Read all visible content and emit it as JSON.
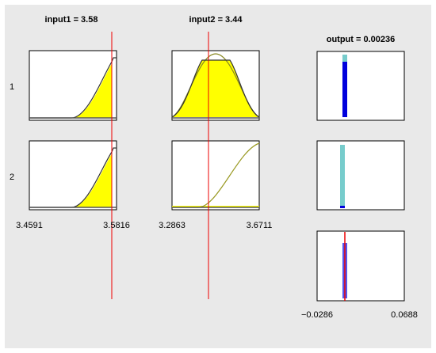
{
  "inputs": [
    {
      "title": "input1 = 3.58",
      "range": [
        "3.4591",
        "3.5816"
      ]
    },
    {
      "title": "input2 = 3.44",
      "range": [
        "3.2863",
        "3.6711"
      ]
    }
  ],
  "output": {
    "title": "output = 0.00236",
    "range": [
      "−0.0286",
      "0.0688"
    ]
  },
  "rules": [
    "1",
    "2"
  ]
}
